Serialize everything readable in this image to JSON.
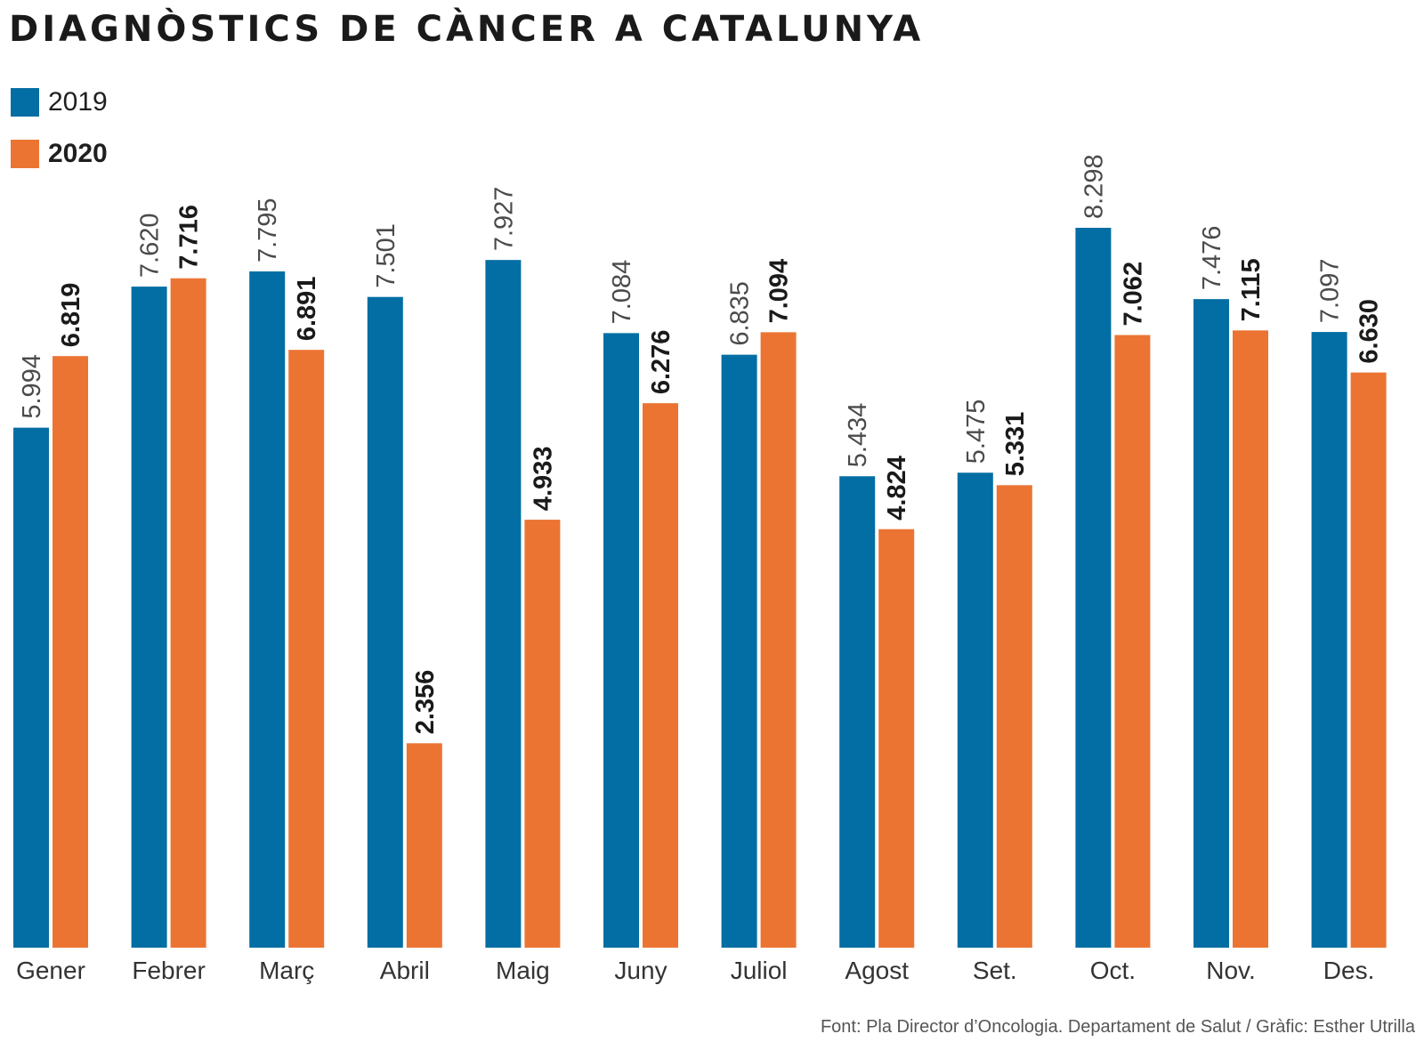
{
  "chart_data": {
    "type": "bar",
    "title": "DIAGNÒSTICS DE CÀNCER A CATALUNYA",
    "categories": [
      "Gener",
      "Febrer",
      "Març",
      "Abril",
      "Maig",
      "Juny",
      "Juliol",
      "Agost",
      "Set.",
      "Oct.",
      "Nov.",
      "Des."
    ],
    "series": [
      {
        "name": "2019",
        "color": "#036ea3",
        "values": [
          5994,
          7620,
          7795,
          7501,
          7927,
          7084,
          6835,
          5434,
          5475,
          8298,
          7476,
          7097
        ],
        "labels": [
          "5.994",
          "7.620",
          "7.795",
          "7.501",
          "7.927",
          "7.084",
          "6.835",
          "5.434",
          "5.475",
          "8.298",
          "7.476",
          "7.097"
        ]
      },
      {
        "name": "2020",
        "color": "#ec7433",
        "values": [
          6819,
          7716,
          6891,
          2356,
          4933,
          6276,
          7094,
          4824,
          5331,
          7062,
          7115,
          6630
        ],
        "labels": [
          "6.819",
          "7.716",
          "6.891",
          "2.356",
          "4.933",
          "6.276",
          "7.094",
          "4.824",
          "5.331",
          "7.062",
          "7.115",
          "6.630"
        ]
      }
    ],
    "ylim": [
      0,
      8298
    ],
    "xlabel": "",
    "ylabel": "",
    "grid": false,
    "legend": "top-left"
  },
  "source": "Font: Pla Director d’Oncologia. Departament de Salut / Gràfic: Esther Utrilla"
}
